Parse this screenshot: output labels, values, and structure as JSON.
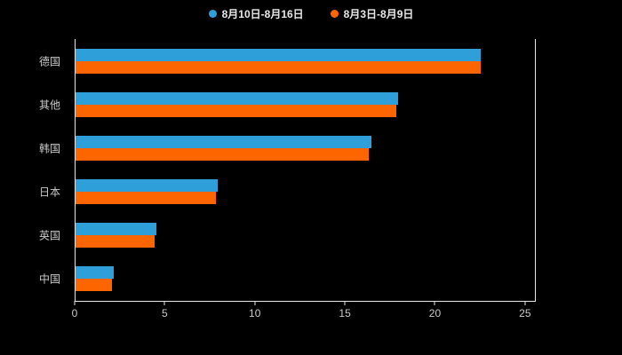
{
  "chart_data": {
    "type": "bar",
    "orientation": "horizontal",
    "title": "",
    "xlabel": "",
    "ylabel": "",
    "categories": [
      "德国",
      "其他",
      "韩国",
      "日本",
      "英国",
      "中国"
    ],
    "series": [
      {
        "name": "8月10日-8月16日",
        "color": "#2f9fda",
        "values": [
          22.5,
          17.9,
          16.4,
          7.9,
          4.5,
          2.1
        ]
      },
      {
        "name": "8月3日-8月9日",
        "color": "#fd6500",
        "values": [
          22.5,
          17.8,
          16.3,
          7.8,
          4.4,
          2.0
        ]
      }
    ],
    "x_ticks": [
      "0",
      "5",
      "10",
      "15",
      "20",
      "25"
    ],
    "xlim": [
      0,
      25.5
    ],
    "legend_position": "top",
    "grid": false,
    "background_color": "#000000",
    "axis_color": "#e8e8e8",
    "tick_label_color": "#c9c9c9"
  }
}
